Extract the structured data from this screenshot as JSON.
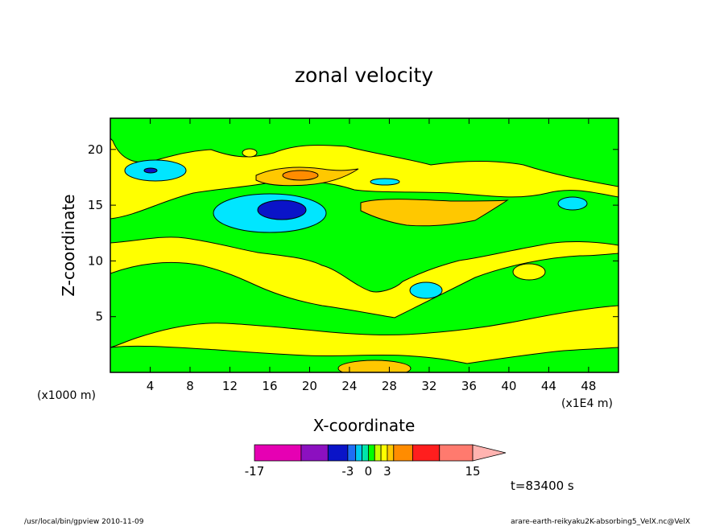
{
  "chart_data": {
    "type": "heatmap",
    "title": "zonal velocity",
    "xlabel": "X-coordinate",
    "ylabel": "Z-coordinate",
    "x_unit_left": "(x1000 m)",
    "x_unit_right": "(x1E4 m)",
    "xlim": [
      0,
      51
    ],
    "ylim": [
      0,
      22.8
    ],
    "xticks": [
      "4",
      "8",
      "12",
      "16",
      "20",
      "24",
      "28",
      "32",
      "36",
      "40",
      "44",
      "48"
    ],
    "xtick_values": [
      4,
      8,
      12,
      16,
      20,
      24,
      28,
      32,
      36,
      40,
      44,
      48
    ],
    "yticks": [
      "5",
      "10",
      "15",
      "20"
    ],
    "ytick_values": [
      5,
      10,
      15,
      20
    ],
    "colorbar": {
      "levels": [
        -17,
        -9,
        -5,
        -3,
        -2,
        -1,
        0,
        1,
        2,
        3,
        5,
        9,
        15
      ],
      "labels": [
        "-17",
        "-3",
        "0",
        "3",
        "15"
      ],
      "label_values": [
        -17,
        -3,
        0,
        3,
        15
      ],
      "colors": [
        "#e600b3",
        "#8c10c0",
        "#0a14c8",
        "#1e6ef5",
        "#00c8f0",
        "#00e6aa",
        "#00ff00",
        "#c8ff00",
        "#ffff00",
        "#ffc800",
        "#ff8c00",
        "#ff1e1e",
        "#ff7a6e"
      ],
      "extend_color": "#ffb3b0"
    },
    "time_label": "t=83400 s"
  },
  "footer": {
    "left": "/usr/local/bin/gpview  2010-11-09",
    "right": "arare-earth-reikyaku2K-absorbing5_VelX.nc@VelX"
  }
}
